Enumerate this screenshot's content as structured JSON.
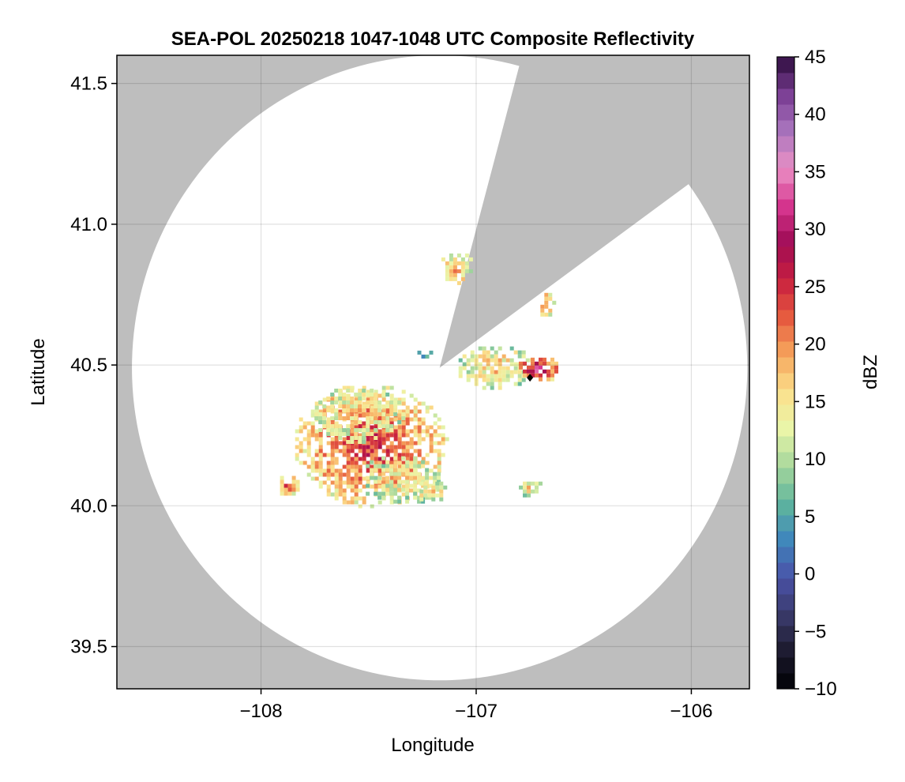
{
  "chart_data": {
    "type": "heatmap",
    "title": "SEA-POL 20250218 1047-1048 UTC Composite Reflectivity",
    "xlabel": "Longitude",
    "ylabel": "Latitude",
    "xlim": [
      -108.67,
      -105.73
    ],
    "ylim": [
      39.35,
      41.6
    ],
    "xticks": [
      -108,
      -107,
      -106
    ],
    "xtick_labels": [
      "−108",
      "−107",
      "−106"
    ],
    "yticks": [
      39.5,
      40.0,
      40.5,
      41.0,
      41.5
    ],
    "ytick_labels": [
      "39.5",
      "40.0",
      "40.5",
      "41.0",
      "41.5"
    ],
    "grid": true,
    "background_color": "#bebebe",
    "radar": {
      "center": [
        -107.17,
        40.49
      ],
      "range_deg_lat": 1.11,
      "range_deg_lon": 1.43,
      "blocked_sector_azimuth": [
        15,
        54
      ],
      "site_marker": [
        -106.75,
        40.455
      ]
    },
    "colorbar": {
      "label": "dBZ",
      "range": [
        -10,
        45
      ],
      "ticks": [
        -10,
        -5,
        0,
        5,
        10,
        15,
        20,
        25,
        30,
        35,
        40,
        45
      ],
      "tick_labels": [
        "−10",
        "−5",
        "0",
        "5",
        "10",
        "15",
        "20",
        "25",
        "30",
        "35",
        "40",
        "45"
      ],
      "colormap": [
        "#000004",
        "#1c1a2e",
        "#3a3a6a",
        "#4a52a8",
        "#3f86bc",
        "#5fb59d",
        "#a7d79c",
        "#eaf5a8",
        "#fbe08c",
        "#f6a55c",
        "#e65a3f",
        "#c8203f",
        "#9f0b55",
        "#d6368f",
        "#eb90c5",
        "#a975be",
        "#7a3d93",
        "#2e0d3e"
      ]
    },
    "echo_regions": [
      {
        "lon": -107.5,
        "lat": 40.22,
        "dbz": 22,
        "rlon": 0.36,
        "rlat": 0.22
      },
      {
        "lon": -107.55,
        "lat": 40.33,
        "dbz": 14,
        "rlon": 0.22,
        "rlat": 0.1
      },
      {
        "lon": -107.35,
        "lat": 40.1,
        "dbz": 12,
        "rlon": 0.2,
        "rlat": 0.09
      },
      {
        "lon": -106.92,
        "lat": 40.5,
        "dbz": 14,
        "rlon": 0.18,
        "rlat": 0.08
      },
      {
        "lon": -106.72,
        "lat": 40.49,
        "dbz": 28,
        "rlon": 0.1,
        "rlat": 0.05
      },
      {
        "lon": -107.26,
        "lat": 40.55,
        "dbz": 2,
        "rlon": 0.05,
        "rlat": 0.015
      },
      {
        "lon": -107.1,
        "lat": 40.85,
        "dbz": 16,
        "rlon": 0.08,
        "rlat": 0.06
      },
      {
        "lon": -107.88,
        "lat": 40.08,
        "dbz": 22,
        "rlon": 0.05,
        "rlat": 0.04
      },
      {
        "lon": -106.68,
        "lat": 40.72,
        "dbz": 18,
        "rlon": 0.04,
        "rlat": 0.05
      },
      {
        "lon": -106.76,
        "lat": 40.07,
        "dbz": 12,
        "rlon": 0.06,
        "rlat": 0.03
      },
      {
        "lon": -107.22,
        "lat": 40.06,
        "dbz": 14,
        "rlon": 0.08,
        "rlat": 0.04
      }
    ]
  }
}
